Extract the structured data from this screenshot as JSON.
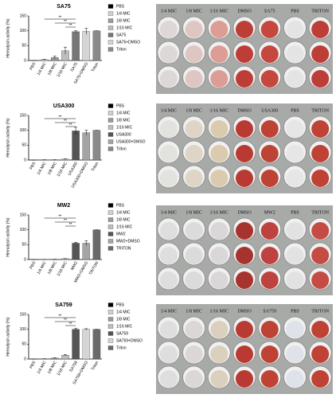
{
  "chart_data": [
    {
      "type": "bar",
      "title": "SA75",
      "ylabel": "Hemolysin activity (%)",
      "categories": [
        "PBS",
        "1/4 MIC",
        "1/8 MIC",
        "1/16 MIC",
        "SA75",
        "SA75+DMSO",
        "Triton"
      ],
      "values": [
        0,
        3,
        10,
        33,
        97,
        98,
        100
      ],
      "errors": [
        0,
        1,
        5,
        12,
        3,
        10,
        0
      ],
      "colors": [
        "#000000",
        "#cfcfcf",
        "#9a9a9a",
        "#bdbdbd",
        "#777777",
        "#d5d5d5",
        "#8a8a8a"
      ],
      "ylim": [
        0,
        150
      ],
      "yticks": [
        0,
        50,
        100,
        150
      ],
      "annotations": [
        "**",
        "**",
        "**"
      ]
    },
    {
      "type": "bar",
      "title": "USA300",
      "ylabel": "Hemolysin activity (%)",
      "categories": [
        "PBS",
        "1/4 MIC",
        "1/8 MIC",
        "1/16 MIC",
        "USA300",
        "USA300+DMSO",
        "Triton"
      ],
      "values": [
        0,
        1,
        1,
        3,
        98,
        92,
        100
      ],
      "errors": [
        0,
        0,
        0,
        1,
        12,
        8,
        0
      ],
      "colors": [
        "#000000",
        "#cfcfcf",
        "#9a9a9a",
        "#bdbdbd",
        "#555555",
        "#a5a5a5",
        "#8a8a8a"
      ],
      "ylim": [
        0,
        150
      ],
      "yticks": [
        0,
        50,
        100,
        150
      ],
      "annotations": [
        "**",
        "**",
        "**"
      ]
    },
    {
      "type": "bar",
      "title": "MW2",
      "ylabel": "Hemolysin activity (%)",
      "categories": [
        "PBS",
        "1/4 MIC",
        "1/8 MIC",
        "1/16 MIC",
        "MW2",
        "MW2+DMSO",
        "TRITON"
      ],
      "values": [
        0,
        0,
        1,
        3,
        55,
        55,
        100
      ],
      "errors": [
        0,
        0,
        0,
        0,
        3,
        8,
        0
      ],
      "colors": [
        "#000000",
        "#cfcfcf",
        "#9a9a9a",
        "#bdbdbd",
        "#555555",
        "#a5a5a5",
        "#6a6a6a"
      ],
      "ylim": [
        0,
        150
      ],
      "yticks": [
        0,
        50,
        100,
        150
      ],
      "annotations": [
        "**",
        "**",
        "**"
      ]
    },
    {
      "type": "bar",
      "title": "SA759",
      "ylabel": "Hemolysin activity (%)",
      "categories": [
        "PBS",
        "1/4 MIC",
        "1/8 MIC",
        "1/16 MIC",
        "SA759",
        "SA759+DMSO",
        "Triton"
      ],
      "values": [
        0,
        1,
        3,
        13,
        100,
        100,
        100
      ],
      "errors": [
        0,
        0,
        1,
        2,
        3,
        2,
        0
      ],
      "colors": [
        "#000000",
        "#cfcfcf",
        "#9a9a9a",
        "#bdbdbd",
        "#555555",
        "#d5d5d5",
        "#6a6a6a"
      ],
      "ylim": [
        0,
        150
      ],
      "yticks": [
        0,
        50,
        100,
        150
      ],
      "annotations": [
        "**",
        "**",
        "**"
      ]
    }
  ],
  "plates": [
    {
      "labels": [
        "1/4 MIC",
        "1/8 MIC",
        "1/16 MIC",
        "DMSO",
        "SA75",
        "PBS",
        "TRITON"
      ]
    },
    {
      "labels": [
        "1/4 MIC",
        "1/8 MIC",
        "1/16 MIC",
        "DMSO",
        "USA300",
        "PBS",
        "TRITON"
      ]
    },
    {
      "labels": [
        "1/4 MIC",
        "1/8 MIC",
        "1/16 MIC",
        "DMSO",
        "MW2",
        "PBS",
        "TRITON"
      ]
    },
    {
      "labels": [
        "1/4 MIC",
        "1/8 MIC",
        "1/16 MIC",
        "DMSO",
        "SA759",
        "PBS",
        "TRITON"
      ]
    }
  ]
}
